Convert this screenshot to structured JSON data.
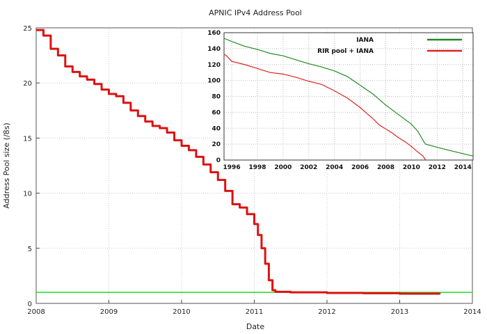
{
  "chart_data": [
    {
      "type": "line",
      "title": "APNIC IPv4 Address Pool",
      "xlabel": "Date",
      "ylabel": "Address Pool size (/8s)",
      "xlim": [
        2008,
        2014
      ],
      "ylim": [
        0,
        25
      ],
      "x_ticks": [
        "2008",
        "2009",
        "2010",
        "2011",
        "2012",
        "2013",
        "2014"
      ],
      "y_ticks": [
        "0",
        "5",
        "10",
        "15",
        "20",
        "25"
      ],
      "grid": true,
      "colors": {
        "pool": "#dd1111",
        "threshold": "#22dd22"
      },
      "threshold": {
        "y": 1.0,
        "x_range": [
          2008,
          2014
        ]
      },
      "series": [
        {
          "x": [
            2008.0,
            2008.1,
            2008.2,
            2008.3,
            2008.4,
            2008.5,
            2008.6,
            2008.7,
            2008.8,
            2008.9,
            2009.0,
            2009.1,
            2009.2,
            2009.3,
            2009.4,
            2009.5,
            2009.6,
            2009.7,
            2009.8,
            2009.9,
            2010.0,
            2010.1,
            2010.2,
            2010.3,
            2010.4,
            2010.5,
            2010.6,
            2010.7,
            2010.8,
            2010.9,
            2011.0,
            2011.05,
            2011.1,
            2011.15,
            2011.2,
            2011.25,
            2011.29,
            2011.5,
            2012.0,
            2012.5,
            2013.0,
            2013.55
          ],
          "values": [
            24.8,
            24.3,
            23.1,
            22.5,
            21.5,
            21.0,
            20.6,
            20.3,
            19.9,
            19.4,
            19.0,
            18.8,
            18.2,
            17.5,
            17.0,
            16.5,
            16.1,
            15.9,
            15.5,
            14.8,
            14.3,
            13.9,
            13.3,
            12.6,
            11.9,
            11.2,
            10.2,
            9.0,
            8.7,
            8.1,
            7.2,
            6.2,
            5.0,
            3.6,
            2.1,
            1.2,
            1.05,
            1.0,
            0.95,
            0.92,
            0.88,
            0.84
          ]
        }
      ]
    },
    {
      "type": "line",
      "xlim": [
        1995.4,
        2014.8
      ],
      "ylim": [
        0,
        160
      ],
      "x_ticks": [
        "1996",
        "1998",
        "2000",
        "2002",
        "2004",
        "2006",
        "2008",
        "2010",
        "2012",
        "2014"
      ],
      "y_ticks": [
        "0",
        "20",
        "40",
        "60",
        "80",
        "100",
        "120",
        "140",
        "160"
      ],
      "grid": true,
      "legend_position": "top-right",
      "series": [
        {
          "name": "IANA",
          "color": "#228822",
          "x": [
            1995.4,
            1996.0,
            1997.0,
            1998.0,
            1999.0,
            2000.0,
            2001.0,
            2002.0,
            2003.0,
            2004.0,
            2005.0,
            2006.0,
            2007.0,
            2008.0,
            2009.0,
            2010.0,
            2010.5,
            2011.0,
            2011.1,
            2012.0,
            2013.0,
            2014.0,
            2014.8
          ],
          "values": [
            153,
            149,
            143,
            139,
            134,
            131,
            126,
            121,
            117,
            112,
            105,
            94,
            83,
            69,
            57,
            45,
            36,
            22,
            20,
            16,
            12,
            8,
            5
          ]
        },
        {
          "name": "RIR pool + IANA",
          "color": "#dd2222",
          "x": [
            1995.4,
            1995.6,
            1996.0,
            1997.0,
            1998.0,
            1999.0,
            2000.0,
            2001.0,
            2002.0,
            2003.0,
            2004.0,
            2005.0,
            2006.0,
            2006.5,
            2007.0,
            2007.5,
            2008.0,
            2008.5,
            2009.0,
            2009.5,
            2010.0,
            2010.5,
            2010.9,
            2011.1
          ],
          "values": [
            133,
            131,
            124,
            120,
            115,
            110,
            108,
            104,
            99,
            95,
            87,
            78,
            66,
            59,
            52,
            44,
            39,
            34,
            28,
            23,
            17,
            10,
            5,
            0
          ]
        }
      ]
    }
  ]
}
